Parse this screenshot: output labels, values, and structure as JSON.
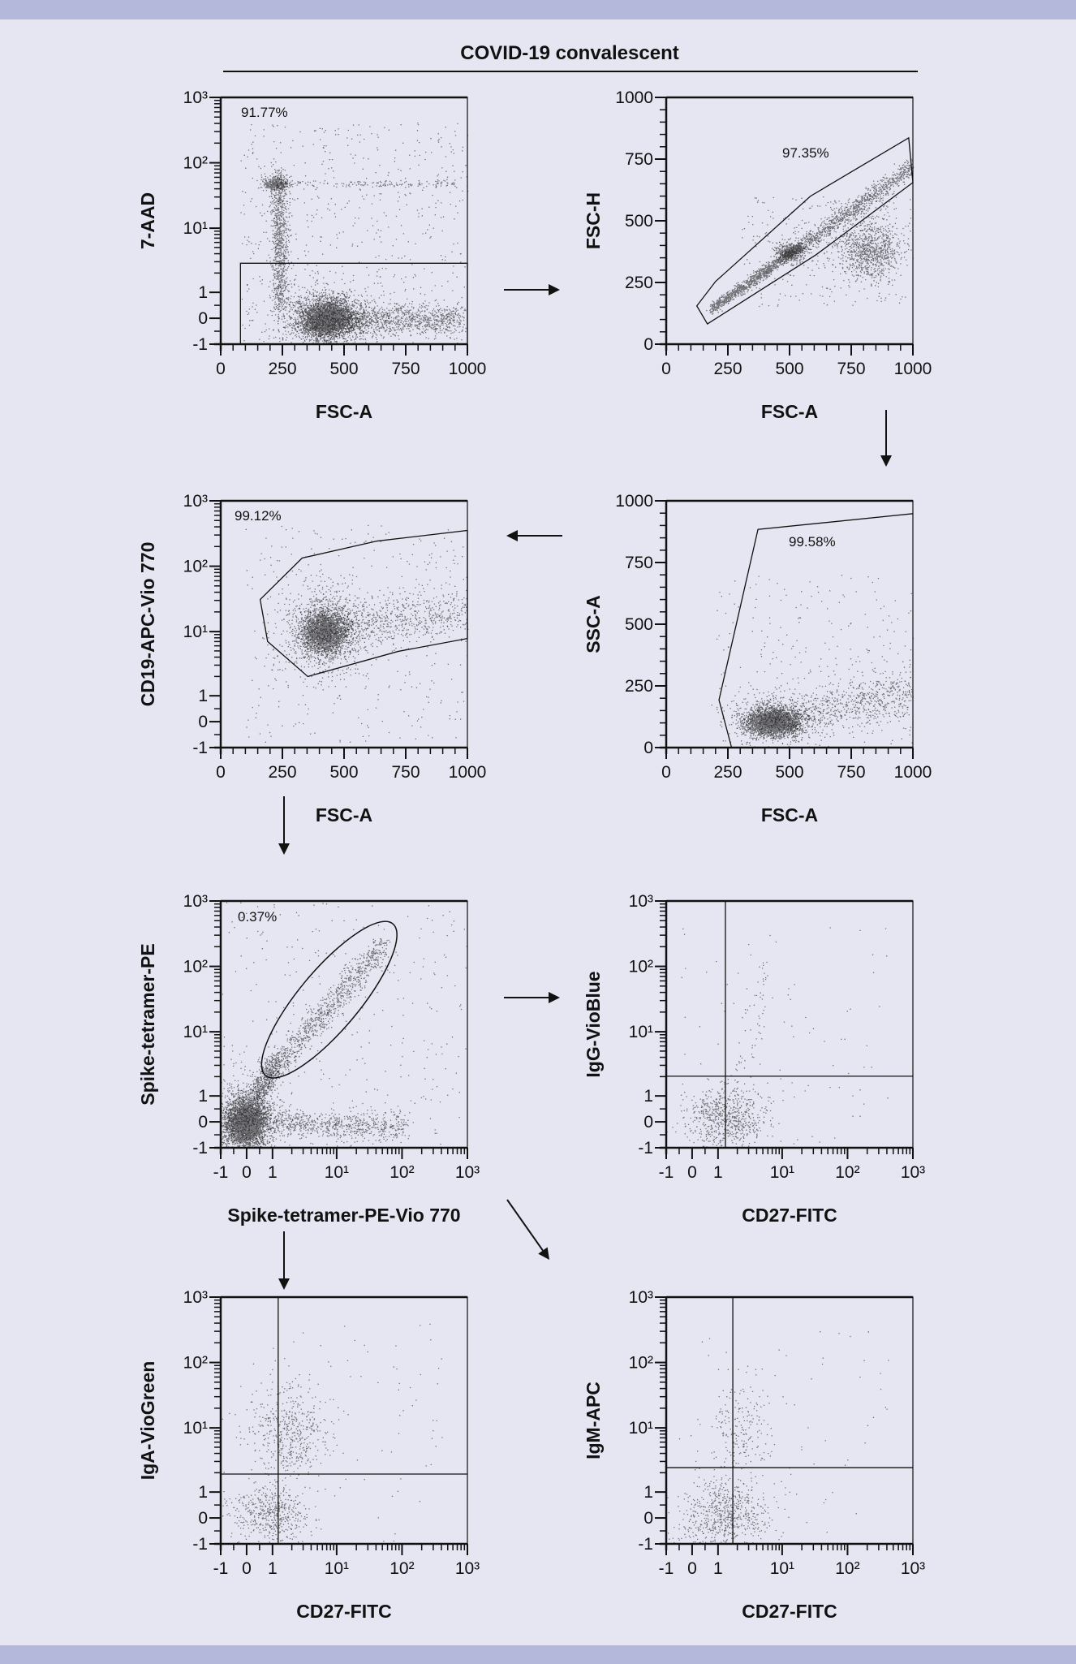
{
  "title": "COVID-19 convalescent",
  "colors": {
    "background": "#e6e6f2",
    "band": "#b4b8da",
    "ink": "#111111"
  },
  "chart_data": [
    {
      "type": "scatter",
      "name": "viability",
      "xlabel": "FSC-A",
      "ylabel": "7-AAD",
      "x_ticks": [
        "0",
        "250",
        "500",
        "750",
        "1000"
      ],
      "x_scale": "linear",
      "xlim": [
        0,
        1000
      ],
      "y_ticks": [
        "-1",
        "0",
        "1",
        "10¹",
        "10²",
        "10³"
      ],
      "y_scale": "biexponential",
      "gate": {
        "type": "rectangle",
        "percent": "91.77%"
      }
    },
    {
      "type": "scatter",
      "name": "singlets",
      "xlabel": "FSC-A",
      "ylabel": "FSC-H",
      "x_ticks": [
        "0",
        "250",
        "500",
        "750",
        "1000"
      ],
      "x_scale": "linear",
      "xlim": [
        0,
        1000
      ],
      "y_ticks": [
        "0",
        "250",
        "500",
        "750",
        "1000"
      ],
      "y_scale": "linear",
      "ylim": [
        0,
        1000
      ],
      "gate": {
        "type": "polygon",
        "percent": "97.35%"
      }
    },
    {
      "type": "scatter",
      "name": "b-cells",
      "xlabel": "FSC-A",
      "ylabel": "CD19-APC-Vio 770",
      "x_ticks": [
        "0",
        "250",
        "500",
        "750",
        "1000"
      ],
      "x_scale": "linear",
      "xlim": [
        0,
        1000
      ],
      "y_ticks": [
        "-1",
        "0",
        "1",
        "10¹",
        "10²",
        "10³"
      ],
      "y_scale": "biexponential",
      "gate": {
        "type": "polygon",
        "percent": "99.12%"
      }
    },
    {
      "type": "scatter",
      "name": "lymphocytes",
      "xlabel": "FSC-A",
      "ylabel": "SSC-A",
      "x_ticks": [
        "0",
        "250",
        "500",
        "750",
        "1000"
      ],
      "x_scale": "linear",
      "xlim": [
        0,
        1000
      ],
      "y_ticks": [
        "0",
        "250",
        "500",
        "750",
        "1000"
      ],
      "y_scale": "linear",
      "ylim": [
        0,
        1000
      ],
      "gate": {
        "type": "polygon",
        "percent": "99.58%"
      }
    },
    {
      "type": "scatter",
      "name": "spike-positive",
      "xlabel": "Spike-tetramer-PE-Vio 770",
      "ylabel": "Spike-tetramer-PE",
      "x_ticks": [
        "-1",
        "0",
        "1",
        "10¹",
        "10²",
        "10³"
      ],
      "x_scale": "biexponential",
      "y_ticks": [
        "-1",
        "0",
        "1",
        "10¹",
        "10²",
        "10³"
      ],
      "y_scale": "biexponential",
      "gate": {
        "type": "ellipse",
        "percent": "0.37%"
      }
    },
    {
      "type": "scatter",
      "name": "igg",
      "xlabel": "CD27-FITC",
      "ylabel": "IgG-VioBlue",
      "x_ticks": [
        "-1",
        "0",
        "1",
        "10¹",
        "10²",
        "10³"
      ],
      "x_scale": "biexponential",
      "y_ticks": [
        "-1",
        "0",
        "1",
        "10¹",
        "10²",
        "10³"
      ],
      "y_scale": "biexponential",
      "gate": {
        "type": "quadrant",
        "percent": ""
      }
    },
    {
      "type": "scatter",
      "name": "iga",
      "xlabel": "CD27-FITC",
      "ylabel": "IgA-VioGreen",
      "x_ticks": [
        "-1",
        "0",
        "1",
        "10¹",
        "10²",
        "10³"
      ],
      "x_scale": "biexponential",
      "y_ticks": [
        "-1",
        "0",
        "1",
        "10¹",
        "10²",
        "10³"
      ],
      "y_scale": "biexponential",
      "gate": {
        "type": "quadrant",
        "percent": ""
      }
    },
    {
      "type": "scatter",
      "name": "igm",
      "xlabel": "CD27-FITC",
      "ylabel": "IgM-APC",
      "x_ticks": [
        "-1",
        "0",
        "1",
        "10¹",
        "10²",
        "10³"
      ],
      "x_scale": "biexponential",
      "y_ticks": [
        "-1",
        "0",
        "1",
        "10¹",
        "10²",
        "10³"
      ],
      "y_scale": "biexponential",
      "gate": {
        "type": "quadrant",
        "percent": ""
      }
    }
  ]
}
